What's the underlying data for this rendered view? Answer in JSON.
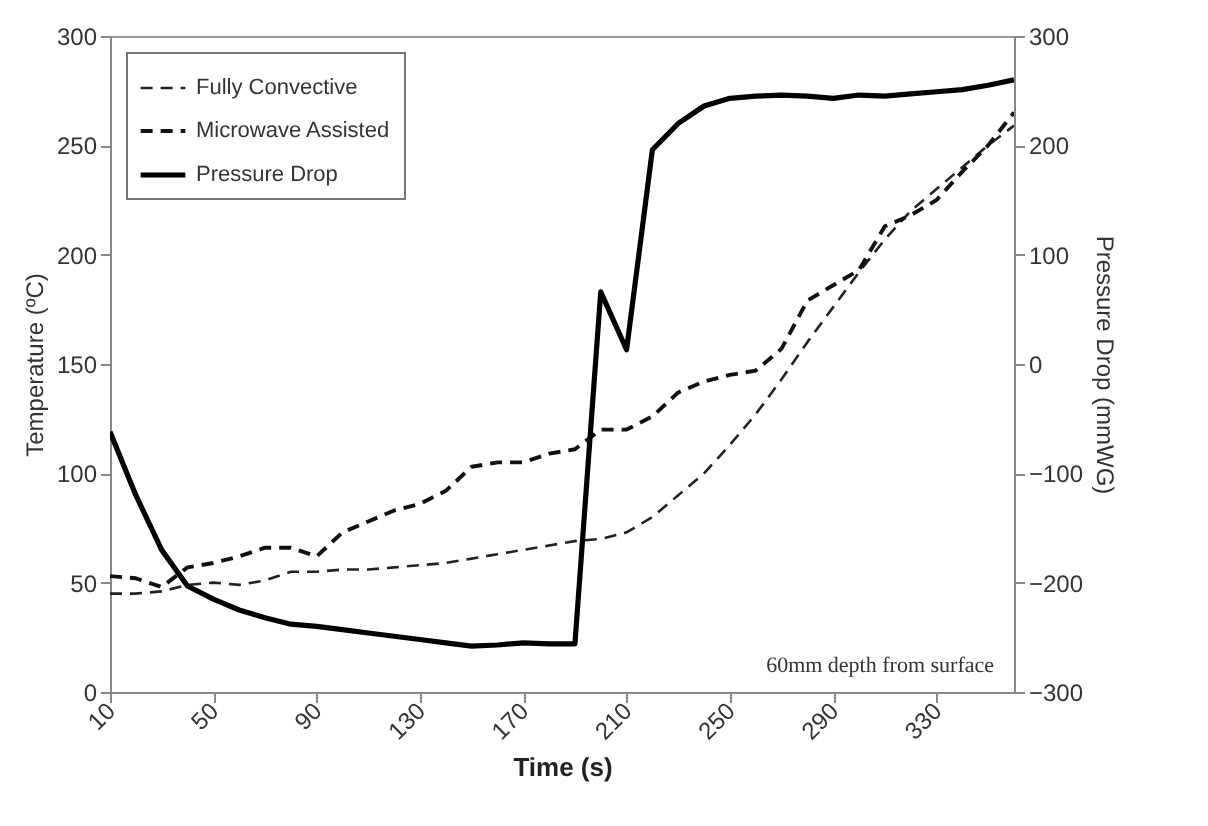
{
  "chart_data": {
    "type": "line",
    "xlabel": "Time (s)",
    "ylabel": "Temperature (ºC)",
    "y2label": "Pressure Drop (mmWG)",
    "x": [
      10,
      20,
      30,
      40,
      50,
      60,
      70,
      80,
      90,
      100,
      110,
      120,
      130,
      140,
      150,
      160,
      170,
      180,
      190,
      200,
      210,
      220,
      230,
      240,
      250,
      260,
      270,
      280,
      290,
      300,
      310,
      320,
      330,
      340,
      350,
      360
    ],
    "series": [
      {
        "name": "Fully Convective",
        "color": "#222222",
        "line_style": "dashed",
        "values": [
          45,
          45,
          46,
          49,
          50,
          49,
          51,
          55,
          55,
          56,
          56,
          57,
          58,
          59,
          61,
          63,
          65,
          67,
          69,
          70,
          73,
          80,
          90,
          100,
          113,
          127,
          143,
          160,
          176,
          192,
          207,
          220,
          230,
          240,
          250,
          259
        ]
      },
      {
        "name": "Microwave Assisted",
        "color": "#111111",
        "line_style": "dashed",
        "values": [
          53,
          52,
          48,
          57,
          59,
          62,
          66,
          66,
          62,
          73,
          78,
          83,
          86,
          92,
          103,
          105,
          105,
          109,
          111,
          120,
          120,
          126,
          137,
          142,
          145,
          147,
          157,
          179,
          186,
          193,
          213,
          218,
          225,
          238,
          250,
          265
        ]
      },
      {
        "name": "Pressure Drop",
        "color": "#000000",
        "line_style": "solid",
        "axis": "y2",
        "values": [
          -62,
          -120,
          -170,
          -203,
          -215,
          -225,
          -232,
          -238,
          -240,
          -243,
          -246,
          -249,
          -252,
          -255,
          -258,
          -257,
          -255,
          -256,
          -256,
          66,
          13,
          196,
          220,
          236,
          243,
          245,
          246,
          245,
          243,
          246,
          245,
          247,
          249,
          251,
          255,
          260
        ]
      }
    ],
    "xlim": [
      10,
      360
    ],
    "xticks": [
      10,
      50,
      90,
      130,
      170,
      210,
      250,
      290,
      330
    ],
    "ylim": [
      0,
      300
    ],
    "yticks": [
      0,
      50,
      100,
      150,
      200,
      250,
      300
    ],
    "y2lim": [
      -300,
      300
    ],
    "y2ticks": [
      -300,
      -200,
      -100,
      0,
      100,
      200,
      300
    ],
    "legend": "top left",
    "grid": false,
    "annotations": [
      "60mm depth from surface"
    ]
  }
}
